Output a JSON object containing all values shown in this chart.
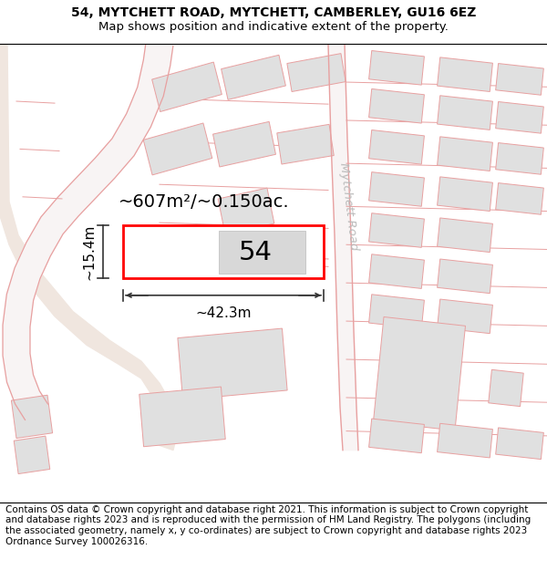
{
  "title_line1": "54, MYTCHETT ROAD, MYTCHETT, CAMBERLEY, GU16 6EZ",
  "title_line2": "Map shows position and indicative extent of the property.",
  "footer_text": "Contains OS data © Crown copyright and database right 2021. This information is subject to Crown copyright and database rights 2023 and is reproduced with the permission of HM Land Registry. The polygons (including the associated geometry, namely x, y co-ordinates) are subject to Crown copyright and database rights 2023 Ordnance Survey 100026316.",
  "map_bg": "#ffffff",
  "road_color": "#e8a0a0",
  "plot_fill": "#ffffff",
  "plot_border": "#ff0000",
  "building_fill": "#e0e0e0",
  "building_edge": "#c0c0c0",
  "tan_area_fill": "#f0e6df",
  "road_label": "Mytchett Road",
  "plot_label": "54",
  "area_label": "~607m²/~0.150ac.",
  "width_label": "~42.3m",
  "height_label": "~15.4m",
  "title_fontsize": 10,
  "footer_fontsize": 7.5
}
